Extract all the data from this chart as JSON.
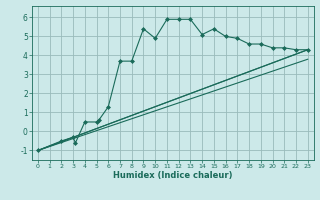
{
  "xlabel": "Humidex (Indice chaleur)",
  "bg_color": "#cce9e9",
  "grid_color": "#99bbbb",
  "line_color": "#1a6b5a",
  "xlim": [
    -0.5,
    23.5
  ],
  "ylim": [
    -1.5,
    6.6
  ],
  "xticks": [
    0,
    1,
    2,
    3,
    4,
    5,
    6,
    7,
    8,
    9,
    10,
    11,
    12,
    13,
    14,
    15,
    16,
    17,
    18,
    19,
    20,
    21,
    22,
    23
  ],
  "yticks": [
    -1,
    0,
    1,
    2,
    3,
    4,
    5,
    6
  ],
  "series1_x": [
    0,
    2,
    3,
    3.2,
    4,
    5,
    5.2,
    6,
    7,
    8,
    9,
    10,
    11,
    12,
    13,
    14,
    15,
    16,
    17,
    18,
    19,
    20,
    21,
    22,
    23
  ],
  "series1_y": [
    -1,
    -0.5,
    -0.3,
    -0.6,
    0.5,
    0.5,
    0.6,
    1.3,
    3.7,
    3.7,
    5.4,
    4.9,
    5.9,
    5.9,
    5.9,
    5.1,
    5.4,
    5.0,
    4.9,
    4.6,
    4.6,
    4.4,
    4.4,
    4.3,
    4.3
  ],
  "series2_x": [
    0,
    23
  ],
  "series2_y": [
    -1,
    4.3
  ],
  "series3_x": [
    0,
    23
  ],
  "series3_y": [
    -1,
    4.3
  ],
  "marker": "D",
  "markersize": 2.0
}
